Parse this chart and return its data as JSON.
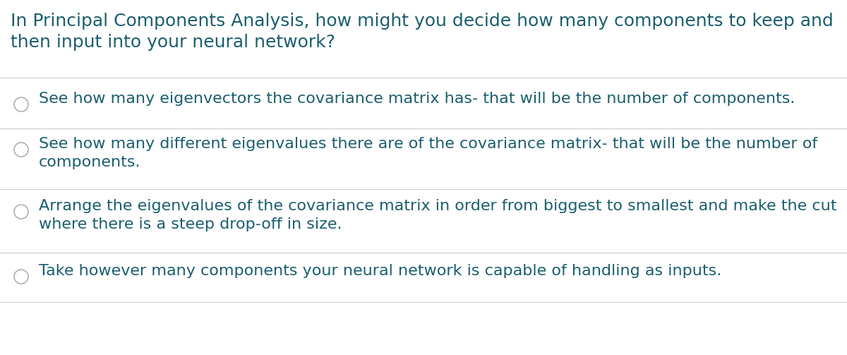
{
  "background_color": "#ffffff",
  "question_line1": "In Principal Components Analysis, how might you decide how many components to keep and",
  "question_line2": "then input into your neural network?",
  "question_color": "#1b5e6e",
  "question_fontsize": 18,
  "options": [
    [
      "See how many eigenvectors the covariance matrix has- that will be the number of components."
    ],
    [
      "See how many different eigenvalues there are of the covariance matrix- that will be the number of",
      "components."
    ],
    [
      "Arrange the eigenvalues of the covariance matrix in order from biggest to smallest and make the cut",
      "where there is a steep drop-off in size."
    ],
    [
      "Take however many components your neural network is capable of handling as inputs."
    ]
  ],
  "option_color": "#1b5e6e",
  "option_fontsize": 16,
  "separator_color": "#d0d0d0",
  "separator_lw": 0.9,
  "circle_color": "#b0b0b0",
  "circle_edgewidth": 1.2
}
